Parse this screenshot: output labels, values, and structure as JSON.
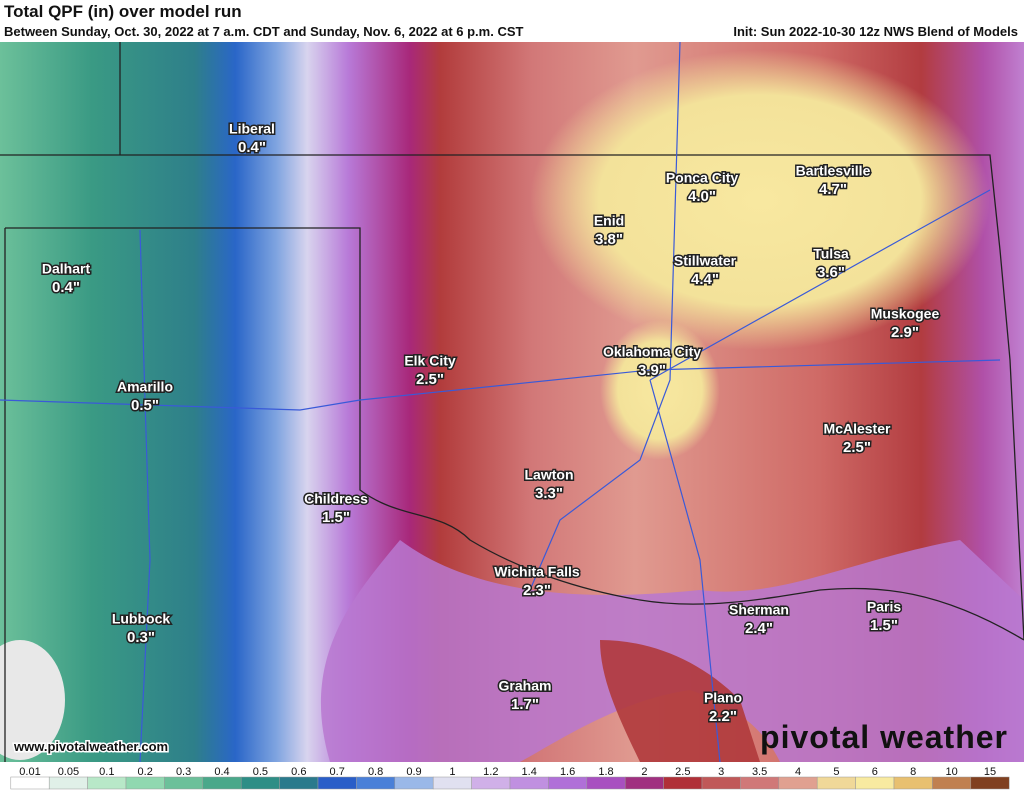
{
  "header": {
    "title": "Total QPF (in) over model run",
    "subtitle": "Between Sunday, Oct. 30, 2022 at 7 a.m. CDT and Sunday, Nov. 6, 2022 at 6 p.m. CST",
    "init": "Init: Sun 2022-10-30 12z NWS Blend of Models"
  },
  "cities": [
    {
      "name": "Liberal",
      "value": "0.4\""
    },
    {
      "name": "Dalhart",
      "value": "0.4\""
    },
    {
      "name": "Amarillo",
      "value": "0.5\""
    },
    {
      "name": "Lubbock",
      "value": "0.3\""
    },
    {
      "name": "Childress",
      "value": "1.5\""
    },
    {
      "name": "Elk City",
      "value": "2.5\""
    },
    {
      "name": "Lawton",
      "value": "3.3\""
    },
    {
      "name": "Wichita Falls",
      "value": "2.3\""
    },
    {
      "name": "Graham",
      "value": "1.7\""
    },
    {
      "name": "Enid",
      "value": "3.8\""
    },
    {
      "name": "Ponca City",
      "value": "4.0\""
    },
    {
      "name": "Stillwater",
      "value": "4.4\""
    },
    {
      "name": "Oklahoma City",
      "value": "3.9\""
    },
    {
      "name": "Bartlesville",
      "value": "4.7\""
    },
    {
      "name": "Tulsa",
      "value": "3.6\""
    },
    {
      "name": "Muskogee",
      "value": "2.9\""
    },
    {
      "name": "McAlester",
      "value": "2.5\""
    },
    {
      "name": "Sherman",
      "value": "2.4\""
    },
    {
      "name": "Paris",
      "value": "1.5\""
    },
    {
      "name": "Plano",
      "value": "2.2\""
    }
  ],
  "website": "www.pivotalweather.com",
  "logo": "pivotal weather",
  "legend": {
    "labels": [
      "0.01",
      "0.05",
      "0.1",
      "0.2",
      "0.3",
      "0.4",
      "0.5",
      "0.6",
      "0.7",
      "0.8",
      "0.9",
      "1",
      "1.2",
      "1.4",
      "1.6",
      "1.8",
      "2",
      "2.5",
      "3",
      "3.5",
      "4",
      "5",
      "6",
      "8",
      "10",
      "15"
    ],
    "colors": [
      "#ffffff",
      "#e0f0e8",
      "#b8e8c8",
      "#90d8b0",
      "#6cc09a",
      "#4aa88a",
      "#2e8e86",
      "#2a7a8c",
      "#2a5ec8",
      "#4a80d8",
      "#9ab8e8",
      "#e0e0f0",
      "#d0b0e8",
      "#c090e0",
      "#b070d8",
      "#a850c0",
      "#a03080",
      "#b03038",
      "#c05858",
      "#d07878",
      "#e0a090",
      "#f0d898",
      "#f8eaa0",
      "#e8c070",
      "#c08050",
      "#804020"
    ]
  }
}
